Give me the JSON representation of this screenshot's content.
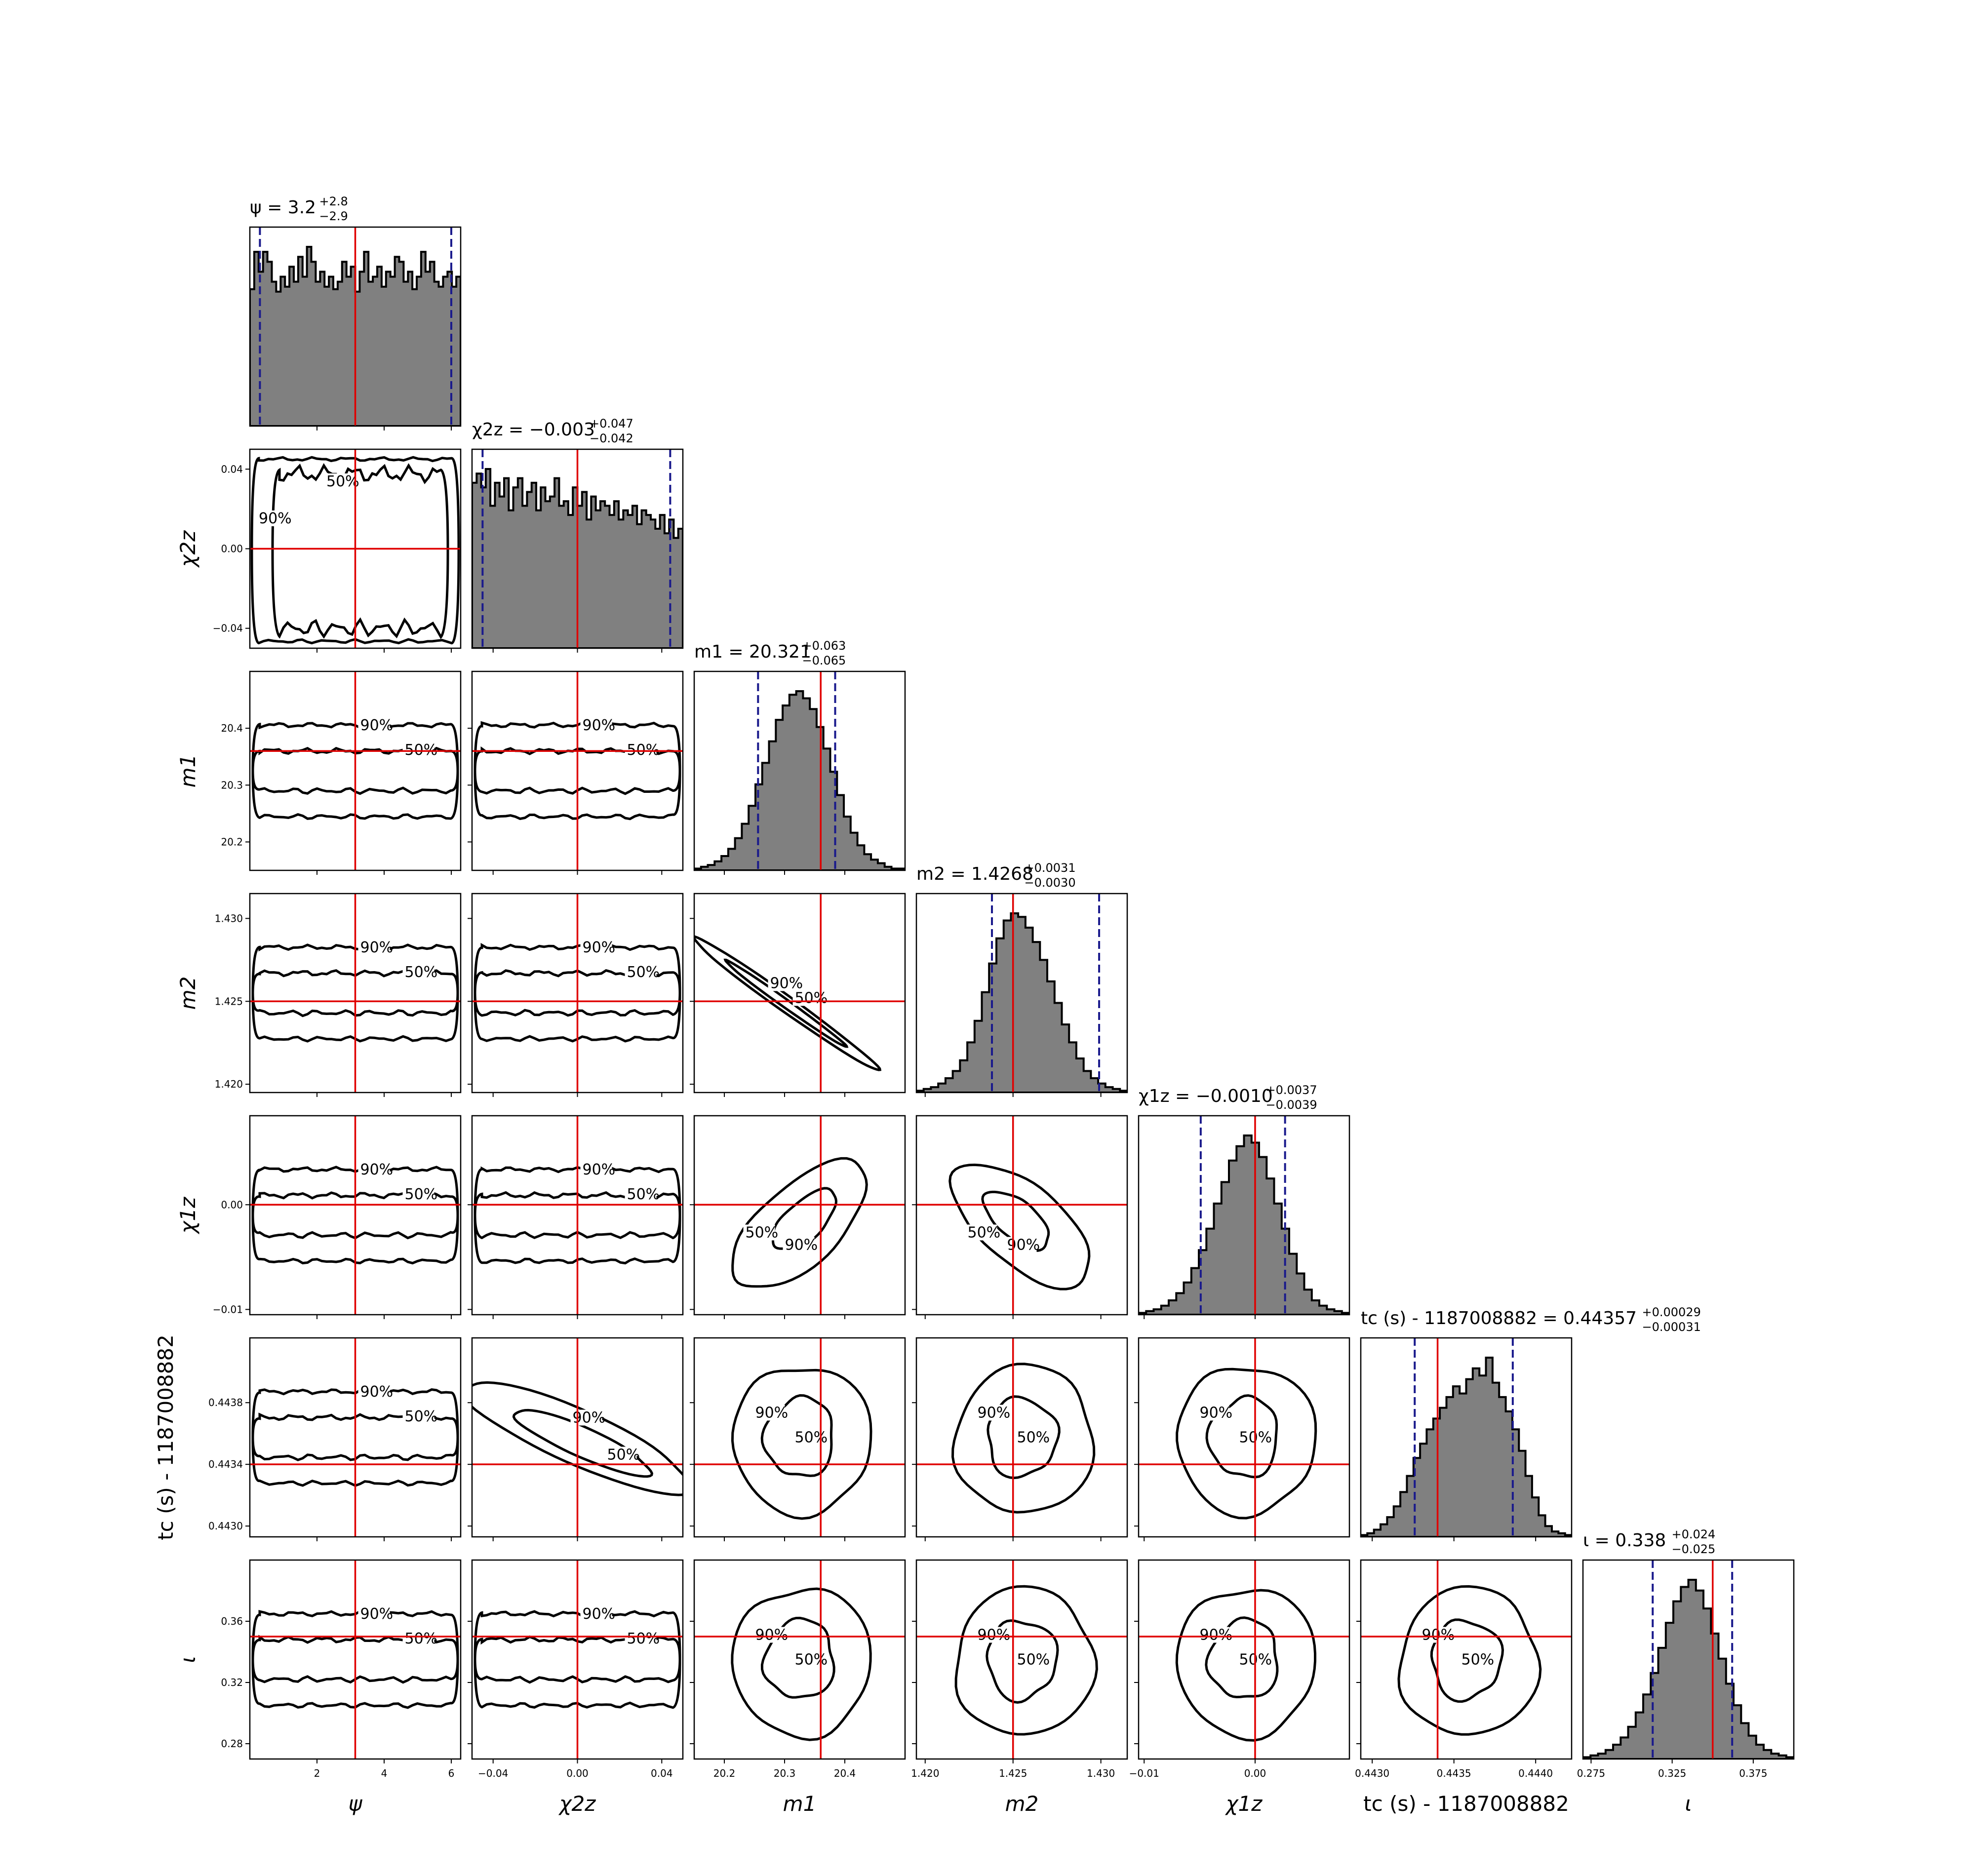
{
  "chart_data": {
    "type": "corner",
    "parameters": [
      {
        "key": "psi",
        "label": "ψ",
        "range": [
          0,
          6.28
        ],
        "ticks": [
          2,
          4,
          6
        ],
        "tick_labels": [
          "2",
          "4",
          "6"
        ],
        "title_prefix": "ψ = 3.2",
        "title_up": "+2.8",
        "title_down": "−2.9",
        "median": 3.2,
        "ci": [
          0.3,
          6.0
        ],
        "injected": 3.14,
        "hist": [
          55,
          70,
          62,
          70,
          66,
          58,
          54,
          60,
          56,
          64,
          58,
          68,
          60,
          72,
          66,
          58,
          62,
          56,
          60,
          55,
          58,
          66,
          60,
          64,
          54,
          62,
          70,
          58,
          60,
          64,
          56,
          62,
          60,
          68,
          66,
          58,
          62,
          55,
          60,
          70,
          62,
          66,
          58,
          56,
          60,
          62,
          56,
          60
        ]
      },
      {
        "key": "chi2z",
        "label": "χ2z",
        "range": [
          -0.05,
          0.05
        ],
        "ticks": [
          -0.04,
          0.0,
          0.04
        ],
        "tick_labels": [
          "−0.04",
          "0.00",
          "0.04"
        ],
        "title_prefix": "χ2z = −0.003",
        "title_up": "+0.047",
        "title_down": "−0.042",
        "median": -0.003,
        "ci": [
          -0.045,
          0.044
        ],
        "injected": 0.0,
        "hist": [
          72,
          76,
          70,
          78,
          62,
          72,
          66,
          74,
          60,
          70,
          74,
          62,
          68,
          72,
          60,
          70,
          64,
          66,
          74,
          62,
          64,
          58,
          70,
          62,
          68,
          56,
          66,
          60,
          64,
          62,
          58,
          64,
          56,
          60,
          58,
          62,
          54,
          60,
          58,
          56,
          52,
          58,
          50,
          56,
          48,
          52
        ]
      },
      {
        "key": "m1",
        "label": "m1",
        "range": [
          20.15,
          20.5
        ],
        "ticks": [
          20.2,
          20.3,
          20.4
        ],
        "tick_labels": [
          "20.2",
          "20.3",
          "20.4"
        ],
        "title_prefix": "m1 = 20.321",
        "title_up": "+0.063",
        "title_down": "−0.065",
        "median": 20.321,
        "ci": [
          20.256,
          20.384
        ],
        "injected": 20.36,
        "hist": [
          1,
          2,
          3,
          5,
          8,
          12,
          18,
          26,
          36,
          48,
          60,
          72,
          84,
          92,
          98,
          100,
          96,
          90,
          80,
          68,
          55,
          42,
          30,
          21,
          14,
          9,
          6,
          4,
          2,
          1,
          1
        ]
      },
      {
        "key": "m2",
        "label": "m2",
        "range": [
          1.4195,
          1.4315
        ],
        "ticks": [
          1.42,
          1.425,
          1.43
        ],
        "tick_labels": [
          "1.420",
          "1.425",
          "1.430"
        ],
        "title_prefix": "m2 = 1.4268",
        "title_up": "+0.0031",
        "title_down": "−0.0030",
        "median": 1.4268,
        "ci": [
          1.4238,
          1.4299
        ],
        "injected": 1.425,
        "hist": [
          1,
          2,
          3,
          5,
          8,
          12,
          18,
          28,
          40,
          56,
          72,
          86,
          96,
          100,
          98,
          92,
          84,
          74,
          62,
          50,
          38,
          28,
          19,
          12,
          8,
          5,
          3,
          2,
          1
        ]
      },
      {
        "key": "chi1z",
        "label": "χ1z",
        "range": [
          -0.0105,
          0.0085
        ],
        "ticks": [
          -0.01,
          0.0
        ],
        "tick_labels": [
          "−0.01",
          "0.00"
        ],
        "title_prefix": "χ1z = −0.0010",
        "title_up": "+0.0037",
        "title_down": "−0.0039",
        "median": -0.001,
        "ci": [
          -0.0049,
          0.0027
        ],
        "injected": 0.0,
        "hist": [
          1,
          2,
          3,
          5,
          8,
          12,
          18,
          26,
          36,
          48,
          62,
          74,
          86,
          94,
          100,
          96,
          88,
          76,
          62,
          48,
          34,
          23,
          14,
          8,
          5,
          3,
          2,
          1
        ]
      },
      {
        "key": "tc",
        "label": "tc (s) - 1187008882",
        "range": [
          0.44293,
          0.44422
        ],
        "ticks": [
          0.443,
          0.4435,
          0.444
        ],
        "tick_labels": [
          "0.4430",
          "0.4435",
          "0.4440"
        ],
        "title_prefix": "tc (s) - 1187008882 = 0.44357",
        "title_up": "+0.00029",
        "title_down": "−0.00031",
        "median": 0.44357,
        "ci": [
          0.44326,
          0.44386
        ],
        "injected": 0.4434,
        "hist": [
          1,
          2,
          4,
          7,
          11,
          17,
          25,
          34,
          44,
          52,
          60,
          66,
          72,
          78,
          84,
          80,
          88,
          94,
          90,
          100,
          86,
          78,
          70,
          60,
          48,
          34,
          22,
          12,
          6,
          3,
          2,
          1
        ]
      },
      {
        "key": "iota",
        "label": "ι",
        "range": [
          0.27,
          0.4
        ],
        "ticks": [
          0.275,
          0.325,
          0.375
        ],
        "tick_labels": [
          "0.275",
          "0.325",
          "0.375"
        ],
        "title_prefix": "ι = 0.338",
        "title_up": "+0.024",
        "title_down": "−0.025",
        "median": 0.338,
        "ci": [
          0.313,
          0.362
        ],
        "injected": 0.35,
        "hist": [
          1,
          2,
          3,
          5,
          8,
          12,
          18,
          26,
          36,
          48,
          62,
          76,
          88,
          96,
          100,
          94,
          84,
          70,
          56,
          42,
          30,
          20,
          13,
          8,
          5,
          3,
          2,
          1
        ]
      }
    ],
    "y_axis": [
      {
        "row": 1,
        "label": "χ2z",
        "ticks": [
          -0.04,
          0.0,
          0.04
        ],
        "tick_labels": [
          "−0.04",
          "0.00",
          "0.04"
        ]
      },
      {
        "row": 2,
        "label": "m1",
        "ticks": [
          20.2,
          20.3,
          20.4
        ],
        "tick_labels": [
          "20.2",
          "20.3",
          "20.4"
        ]
      },
      {
        "row": 3,
        "label": "m2",
        "ticks": [
          1.42,
          1.425,
          1.43
        ],
        "tick_labels": [
          "1.420",
          "1.425",
          "1.430"
        ]
      },
      {
        "row": 4,
        "label": "χ1z",
        "ticks": [
          -0.01,
          0.0
        ],
        "tick_labels": [
          "−0.01",
          "0.00"
        ]
      },
      {
        "row": 5,
        "label": "tc (s) - 1187008882",
        "ticks": [
          0.443,
          0.4434,
          0.4438
        ],
        "tick_labels": [
          "0.4430",
          "0.4434",
          "0.4438"
        ]
      },
      {
        "row": 6,
        "label": "ι",
        "ticks": [
          0.28,
          0.32,
          0.36
        ],
        "tick_labels": [
          "0.28",
          "0.32",
          "0.36"
        ]
      }
    ],
    "contour_levels": [
      "50%",
      "90%"
    ],
    "colors": {
      "hist_fill": "#808080",
      "injection": "#e00000",
      "interval": "#1a1a8c",
      "contour": "#000000"
    }
  }
}
